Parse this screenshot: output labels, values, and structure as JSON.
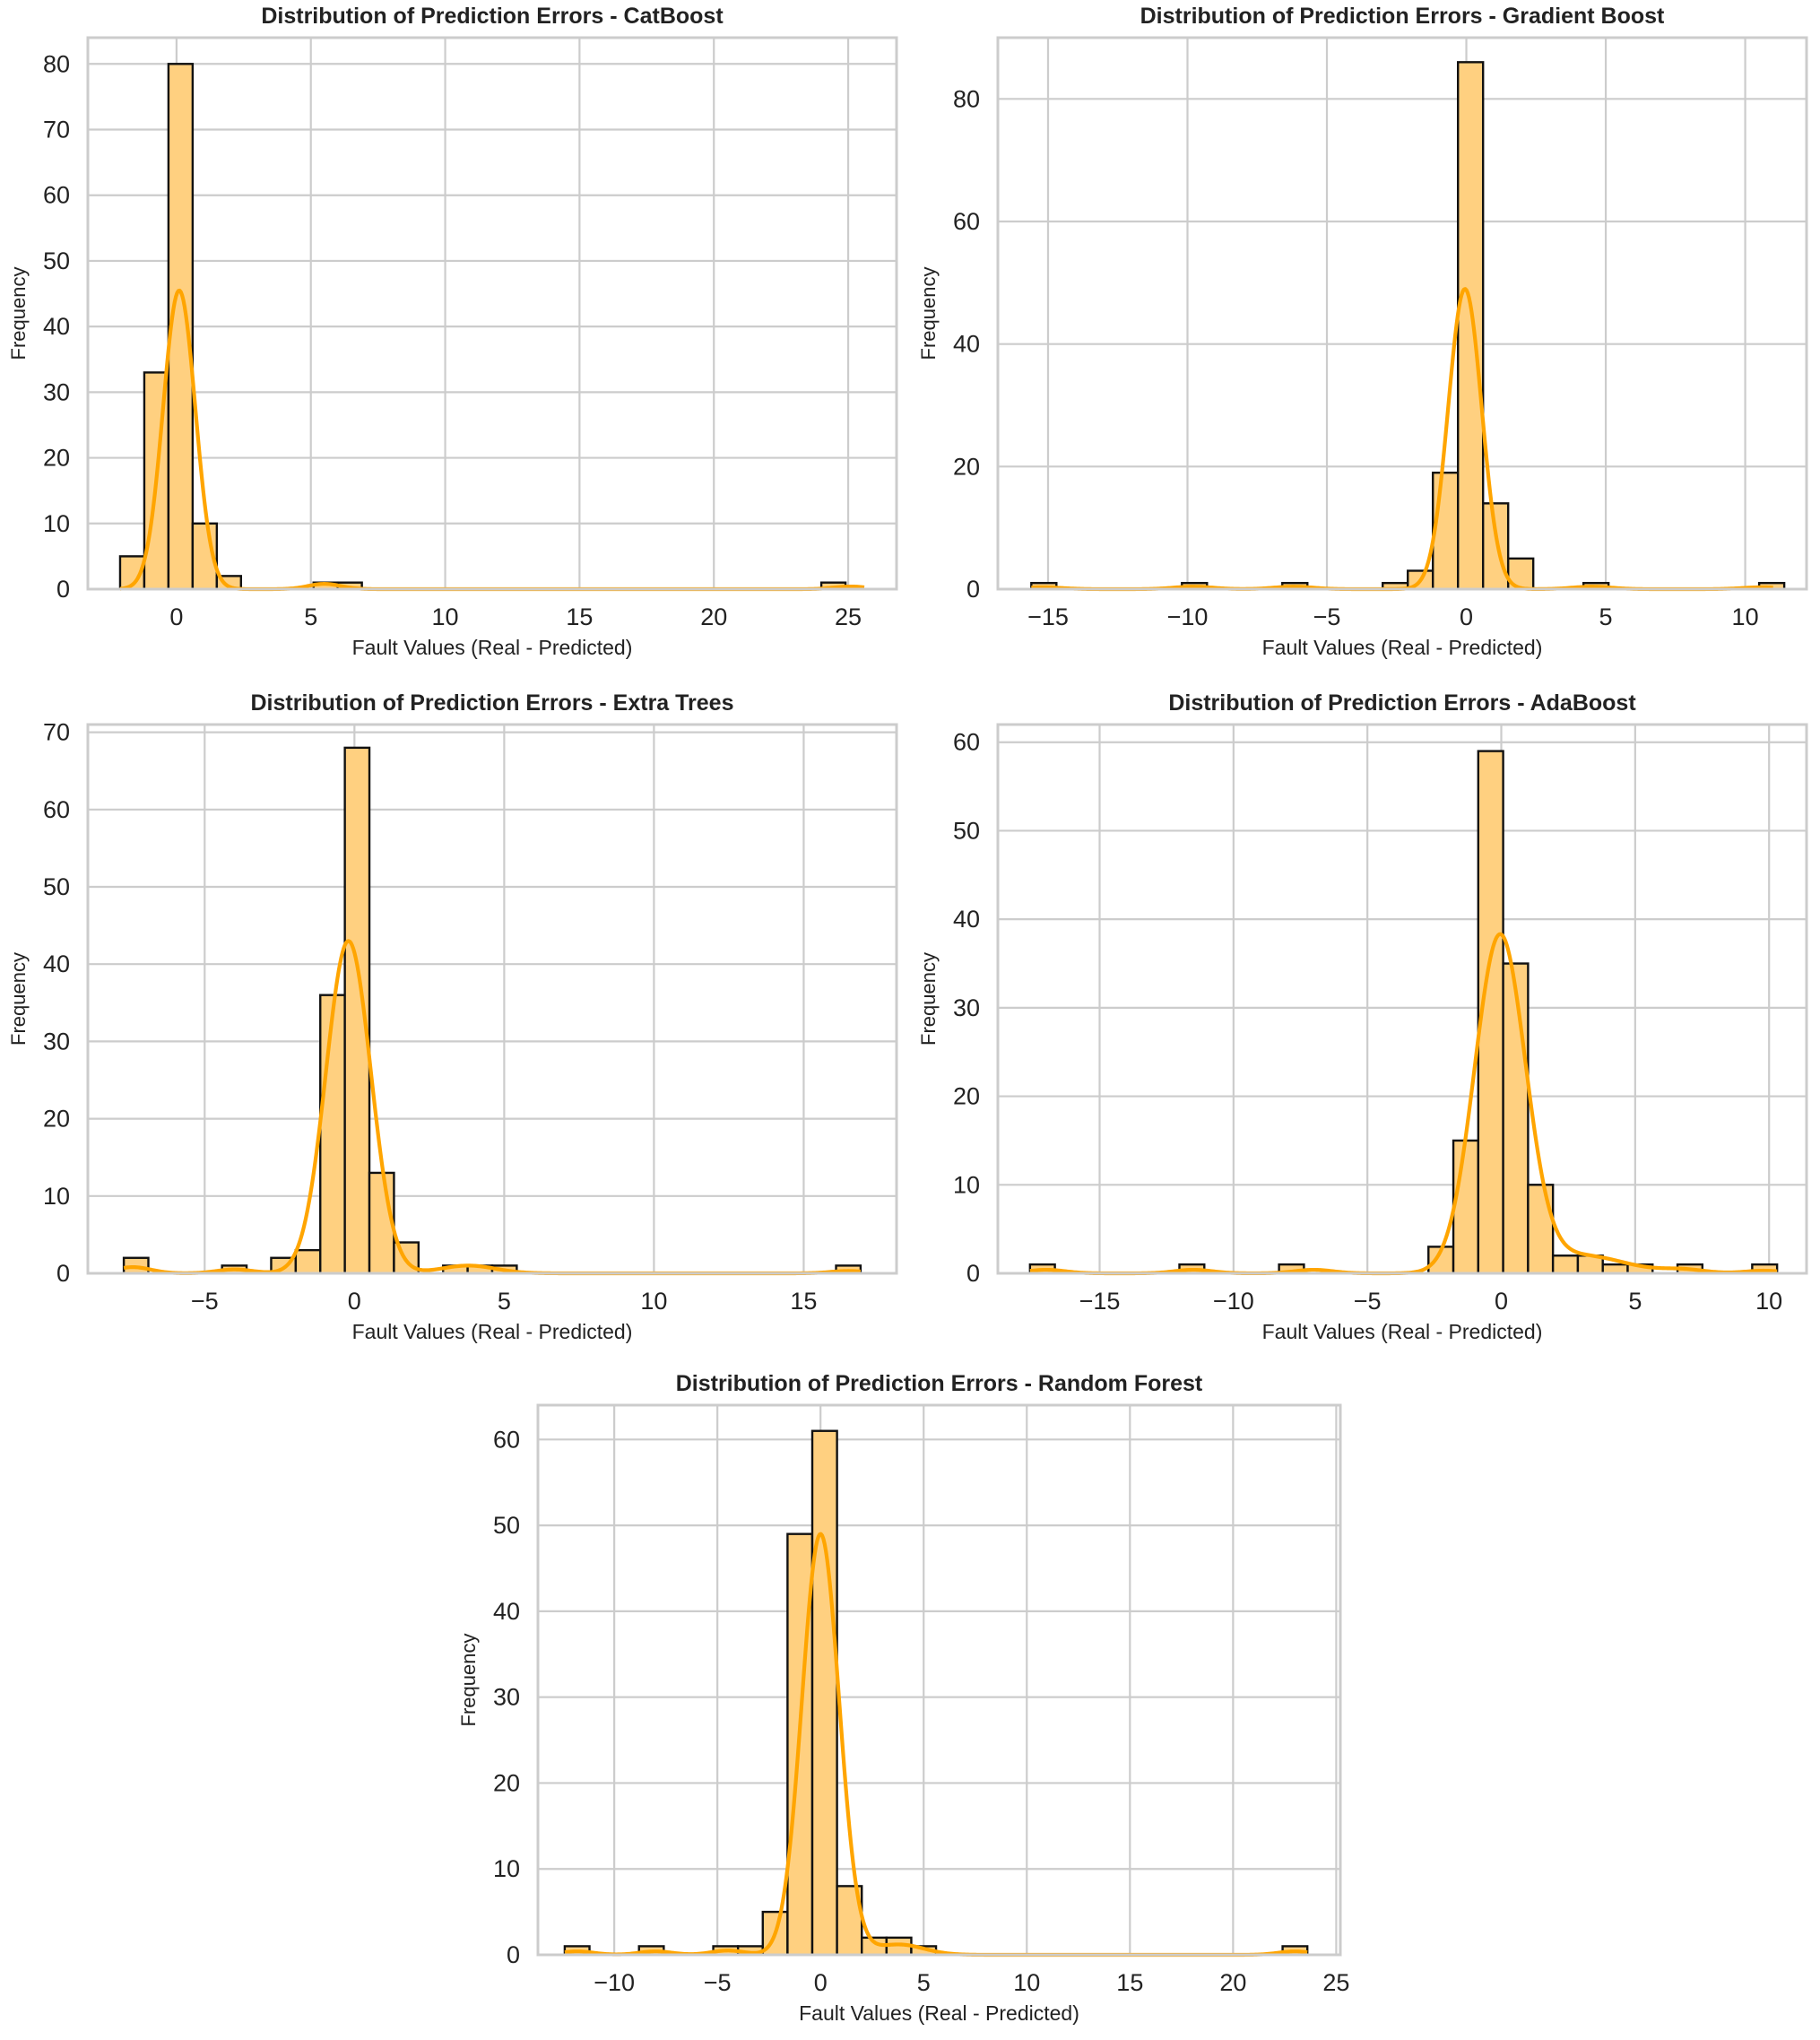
{
  "figure": {
    "background": "#ffffff",
    "colors": {
      "bar_fill": "#FFD080",
      "bar_edge": "#111111",
      "kde_line": "#FFA500",
      "grid": "#cccccc",
      "frame": "#cccccc",
      "text": "#222222"
    }
  },
  "chart_data": [
    {
      "type": "bar",
      "title": "Distribution of Prediction Errors - CatBoost",
      "xlabel": "Fault Values (Real - Predicted)",
      "ylabel": "Frequency",
      "xlim": [
        -3.3,
        26.8
      ],
      "ylim": [
        0,
        84
      ],
      "xticks": [
        0,
        5,
        10,
        15,
        20,
        25
      ],
      "yticks": [
        0,
        10,
        20,
        30,
        40,
        50,
        60,
        70,
        80
      ],
      "bins": {
        "start": -2.1,
        "width": 0.9,
        "counts": [
          5,
          33,
          80,
          10,
          2,
          0,
          0,
          0,
          1,
          1,
          0,
          0,
          0,
          0,
          0,
          0,
          0,
          0,
          0,
          0,
          0,
          0,
          0,
          0,
          0,
          0,
          0,
          0,
          0,
          1
        ]
      },
      "kde": {
        "peak_x": 0.1,
        "peak_y": 45.5,
        "sigma": 0.6,
        "x_range": [
          -2.1,
          25.6
        ],
        "tails": [
          {
            "x": 5.5,
            "y": 0.8,
            "s": 0.6
          },
          {
            "x": 25.1,
            "y": 0.4,
            "s": 0.6
          }
        ]
      }
    },
    {
      "type": "bar",
      "title": "Distribution of Prediction Errors - Gradient Boost",
      "xlabel": "Fault Values (Real - Predicted)",
      "ylabel": "Frequency",
      "xlim": [
        -16.8,
        12.2
      ],
      "ylim": [
        0,
        90
      ],
      "xticks": [
        -15,
        -10,
        -5,
        0,
        5,
        10
      ],
      "yticks": [
        0,
        20,
        40,
        60,
        80
      ],
      "bins": {
        "start": -15.6,
        "width": 0.9,
        "counts": [
          1,
          0,
          0,
          0,
          0,
          0,
          1,
          0,
          0,
          0,
          1,
          0,
          0,
          0,
          1,
          3,
          19,
          86,
          14,
          5,
          0,
          0,
          1,
          0,
          0,
          0,
          0,
          0,
          0,
          1
        ]
      },
      "kde": {
        "peak_x": -0.05,
        "peak_y": 49,
        "sigma": 0.6,
        "x_range": [
          -15.6,
          11.0
        ],
        "tails": [
          {
            "x": -15.2,
            "y": 0.3,
            "s": 0.7
          },
          {
            "x": -9.8,
            "y": 0.4,
            "s": 0.7
          },
          {
            "x": -6.2,
            "y": 0.4,
            "s": 0.7
          },
          {
            "x": 4.5,
            "y": 0.4,
            "s": 0.7
          },
          {
            "x": 10.6,
            "y": 0.3,
            "s": 0.7
          }
        ]
      }
    },
    {
      "type": "bar",
      "title": "Distribution of Prediction Errors - Extra Trees",
      "xlabel": "Fault Values (Real - Predicted)",
      "ylabel": "Frequency",
      "xlim": [
        -8.9,
        18.1
      ],
      "ylim": [
        0,
        71
      ],
      "xticks": [
        -5,
        0,
        5,
        10,
        15
      ],
      "yticks": [
        0,
        10,
        20,
        30,
        40,
        50,
        60,
        70
      ],
      "bins": {
        "start": -7.7,
        "width": 0.82,
        "counts": [
          2,
          0,
          0,
          0,
          1,
          0,
          2,
          3,
          36,
          68,
          13,
          4,
          0,
          1,
          1,
          1,
          0,
          0,
          0,
          0,
          0,
          0,
          0,
          0,
          0,
          0,
          0,
          0,
          0,
          1
        ]
      },
      "kde": {
        "peak_x": -0.2,
        "peak_y": 43,
        "sigma": 0.75,
        "x_range": [
          -7.7,
          16.9
        ],
        "tails": [
          {
            "x": -7.4,
            "y": 0.8,
            "s": 0.6
          },
          {
            "x": -4.0,
            "y": 0.5,
            "s": 0.6
          },
          {
            "x": 3.8,
            "y": 1.0,
            "s": 0.9
          },
          {
            "x": 16.5,
            "y": 0.3,
            "s": 0.6
          }
        ]
      }
    },
    {
      "type": "bar",
      "title": "Distribution of Prediction Errors - AdaBoost",
      "xlabel": "Fault Values (Real - Predicted)",
      "ylabel": "Frequency",
      "xlim": [
        -18.8,
        11.4
      ],
      "ylim": [
        0,
        62
      ],
      "xticks": [
        -15,
        -10,
        -5,
        0,
        5,
        10
      ],
      "yticks": [
        0,
        10,
        20,
        30,
        40,
        50,
        60
      ],
      "bins": {
        "start": -17.6,
        "width": 0.93,
        "counts": [
          1,
          0,
          0,
          0,
          0,
          0,
          1,
          0,
          0,
          0,
          1,
          0,
          0,
          0,
          0,
          0,
          3,
          15,
          59,
          35,
          10,
          2,
          2,
          1,
          1,
          0,
          1,
          0,
          0,
          1
        ]
      },
      "kde": {
        "peak_x": -0.05,
        "peak_y": 38,
        "sigma": 0.95,
        "x_range": [
          -17.6,
          10.3
        ],
        "tails": [
          {
            "x": -17.0,
            "y": 0.4,
            "s": 0.7
          },
          {
            "x": -11.5,
            "y": 0.4,
            "s": 0.7
          },
          {
            "x": -7.0,
            "y": 0.4,
            "s": 0.7
          },
          {
            "x": 3.0,
            "y": 2.0,
            "s": 1.6
          },
          {
            "x": 6.8,
            "y": 0.4,
            "s": 0.8
          },
          {
            "x": 9.8,
            "y": 0.3,
            "s": 0.7
          }
        ]
      }
    },
    {
      "type": "bar",
      "title": "Distribution of Prediction Errors - Random Forest",
      "xlabel": "Fault Values (Real - Predicted)",
      "ylabel": "Frequency",
      "xlim": [
        -13.7,
        25.2
      ],
      "ylim": [
        0,
        64
      ],
      "xticks": [
        -10,
        -5,
        0,
        5,
        10,
        15,
        20,
        25
      ],
      "yticks": [
        0,
        10,
        20,
        30,
        40,
        50,
        60
      ],
      "bins": {
        "start": -12.4,
        "width": 1.2,
        "counts": [
          1,
          0,
          0,
          1,
          0,
          0,
          1,
          1,
          5,
          49,
          61,
          8,
          2,
          2,
          1,
          0,
          0,
          0,
          0,
          0,
          0,
          0,
          0,
          0,
          0,
          0,
          0,
          0,
          0,
          1
        ]
      },
      "kde": {
        "peak_x": 0,
        "peak_y": 49,
        "sigma": 0.9,
        "x_range": [
          -12.4,
          23.6
        ],
        "tails": [
          {
            "x": -11.8,
            "y": 0.4,
            "s": 0.8
          },
          {
            "x": -8.0,
            "y": 0.4,
            "s": 0.8
          },
          {
            "x": -4.5,
            "y": 0.5,
            "s": 0.8
          },
          {
            "x": 3.8,
            "y": 1.2,
            "s": 1.2
          },
          {
            "x": 23.0,
            "y": 0.4,
            "s": 0.8
          }
        ]
      }
    }
  ]
}
